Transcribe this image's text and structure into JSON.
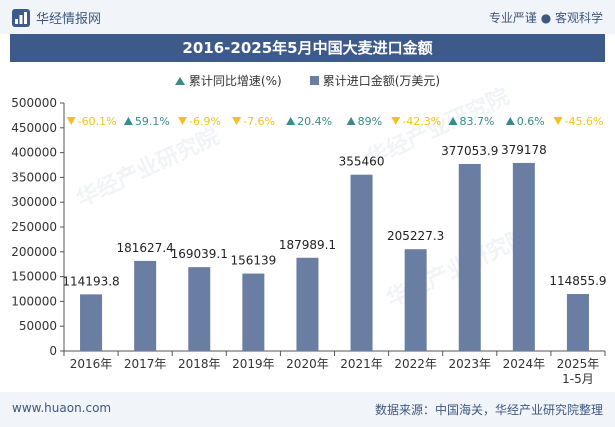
{
  "header": {
    "brand": "华经情报网",
    "tagline": "专业严谨 ● 客观科学"
  },
  "title": "2016-2025年5月中国大麦进口金额",
  "legend": {
    "growth_label": "累计同比增速(%)",
    "amount_label": "累计进口金额(万美元)"
  },
  "footer": {
    "website": "www.huaon.com",
    "source": "数据来源：中国海关，华经产业研究院整理"
  },
  "watermark": "华经产业研究院",
  "colors": {
    "bar": "#6a7ea4",
    "up": "#3a8a8c",
    "down": "#f2c21a",
    "title_bg": "#3c5a8a"
  },
  "chart_data": {
    "type": "bar",
    "categories": [
      "2016年",
      "2017年",
      "2018年",
      "2019年",
      "2020年",
      "2021年",
      "2022年",
      "2023年",
      "2024年",
      "2025年\n1-5月"
    ],
    "series": [
      {
        "name": "累计进口金额(万美元)",
        "values": [
          114193.8,
          181627.4,
          169039.1,
          156139,
          187989.1,
          355460,
          205227.3,
          377053.9,
          379178,
          114855.9
        ]
      },
      {
        "name": "累计同比增速(%)",
        "values": [
          -60.1,
          59.1,
          -6.9,
          -7.6,
          20.4,
          89,
          -42.3,
          83.7,
          0.6,
          -45.6
        ]
      }
    ],
    "value_labels": [
      "114193.8",
      "181627.4",
      "169039.1",
      "156139",
      "187989.1",
      "355460",
      "205227.3",
      "377053.9",
      "379178",
      "114855.9"
    ],
    "growth_labels": [
      "-60.1%",
      "59.1%",
      "-6.9%",
      "-7.6%",
      "20.4%",
      "89%",
      "-42.3%",
      "83.7%",
      "0.6%",
      "-45.6%"
    ],
    "yticks": [
      "0",
      "50000",
      "100000",
      "150000",
      "200000",
      "250000",
      "300000",
      "350000",
      "400000",
      "450000",
      "500000"
    ],
    "ylim": [
      0,
      500000
    ],
    "grid": false
  }
}
